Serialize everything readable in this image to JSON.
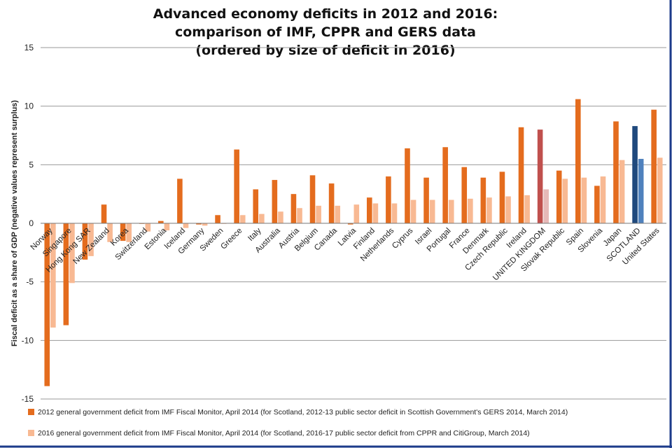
{
  "chart_data": {
    "type": "bar",
    "title": [
      "Advanced economy deficits in 2012 and 2016:",
      "comparison of IMF, CPPR and GERS data",
      "(ordered by size of deficit in 2016)"
    ],
    "ylabel": "Fiscal deficit as a share of GDP (negative values represent surplus)",
    "xlabel": "",
    "ylim": [
      -15,
      15
    ],
    "yticks": [
      15,
      10,
      5,
      0,
      -5,
      -10,
      -15
    ],
    "grid": true,
    "legend_position": "bottom",
    "categories": [
      "Norway",
      "Singapore",
      "Hong Kong SAR",
      "New Zealand",
      "Korea",
      "Switzerland",
      "Estonia",
      "Iceland",
      "Germany",
      "Sweden",
      "Greece",
      "Italy",
      "Australia",
      "Austria",
      "Belgium",
      "Canada",
      "Latvia",
      "Finland",
      "Netherlands",
      "Cyprus",
      "Israel",
      "Portugal",
      "France",
      "Denmark",
      "Czech Republic",
      "Ireland",
      "UNITED KINGDOM",
      "Slovak Republic",
      "Spain",
      "Slovenia",
      "Japan",
      "SCOTLAND",
      "United States"
    ],
    "series": [
      {
        "name": "2012 general government deficit from IMF Fiscal Monitor, April 2014 (for Scotland, 2012-13 public sector deficit in Scottish Government's GERS 2014, March 2014)",
        "color": "#e46c1e",
        "values": [
          -13.9,
          -8.7,
          -3.1,
          1.6,
          -1.5,
          0.0,
          0.2,
          3.8,
          -0.1,
          0.7,
          6.3,
          2.9,
          3.7,
          2.5,
          4.1,
          3.4,
          -0.1,
          2.2,
          4.0,
          6.4,
          3.9,
          6.5,
          4.8,
          3.9,
          4.4,
          8.2,
          8.0,
          4.5,
          10.6,
          3.2,
          8.7,
          8.3,
          9.7
        ]
      },
      {
        "name": "2016 general government deficit from IMF Fiscal Monitor, April 2014 (for Scotland, 2016-17 public sector deficit from CPPR and CitiGroup, March 2014)",
        "color": "#f8b993",
        "values": [
          -8.9,
          -5.1,
          -2.8,
          -1.6,
          -1.6,
          -0.7,
          -0.6,
          -0.4,
          -0.2,
          0.0,
          0.7,
          0.8,
          1.0,
          1.3,
          1.5,
          1.5,
          1.6,
          1.7,
          1.7,
          2.0,
          2.0,
          2.0,
          2.1,
          2.2,
          2.3,
          2.4,
          2.9,
          3.8,
          3.9,
          4.0,
          5.4,
          5.5,
          5.6
        ]
      }
    ],
    "highlights": {
      "UNITED KINGDOM": {
        "color_2012": "#c0504d",
        "color_2016": "#e6b9b8"
      },
      "SCOTLAND": {
        "color_2012": "#1f497d",
        "color_2016": "#4f81bd"
      }
    }
  }
}
